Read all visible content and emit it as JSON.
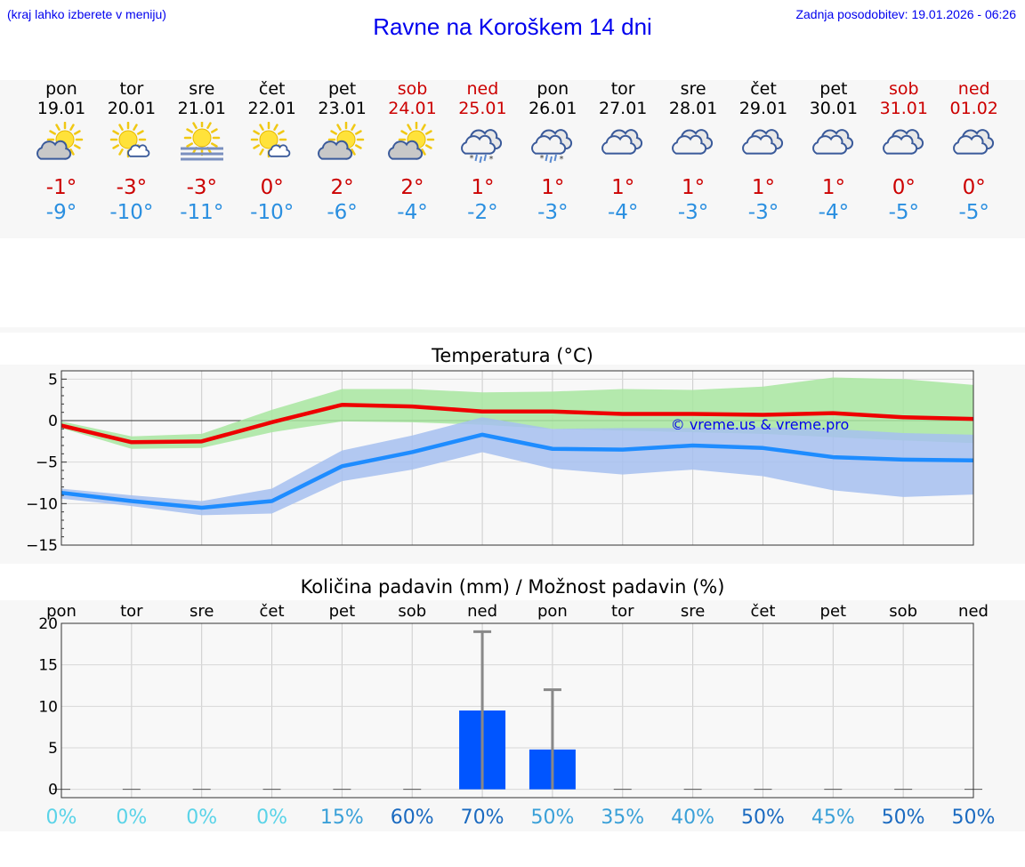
{
  "header": {
    "menu_hint": "(kraj lahko izberete v meniju)",
    "title": "Ravne na Koroškem 14 dni",
    "updated": "Zadnja posodobitev: 19.01.2026 - 06:26"
  },
  "days": [
    {
      "name": "pon",
      "date": "19.01",
      "weekend": false,
      "icon": "partly-cloudy-sun-icon",
      "tmax": "-1°",
      "tmin": "-9°"
    },
    {
      "name": "tor",
      "date": "20.01",
      "weekend": false,
      "icon": "sun-small-cloud-icon",
      "tmax": "-3°",
      "tmin": "-10°"
    },
    {
      "name": "sre",
      "date": "21.01",
      "weekend": false,
      "icon": "sun-fog-icon",
      "tmax": "-3°",
      "tmin": "-11°"
    },
    {
      "name": "čet",
      "date": "22.01",
      "weekend": false,
      "icon": "sun-small-cloud-icon",
      "tmax": "0°",
      "tmin": "-10°"
    },
    {
      "name": "pet",
      "date": "23.01",
      "weekend": false,
      "icon": "partly-cloudy-sun-icon",
      "tmax": "2°",
      "tmin": "-6°"
    },
    {
      "name": "sob",
      "date": "24.01",
      "weekend": true,
      "icon": "partly-cloudy-sun-icon",
      "tmax": "2°",
      "tmin": "-4°"
    },
    {
      "name": "ned",
      "date": "25.01",
      "weekend": true,
      "icon": "cloud-sleet-icon",
      "tmax": "1°",
      "tmin": "-2°"
    },
    {
      "name": "pon",
      "date": "26.01",
      "weekend": false,
      "icon": "cloud-sleet-icon",
      "tmax": "1°",
      "tmin": "-3°"
    },
    {
      "name": "tor",
      "date": "27.01",
      "weekend": false,
      "icon": "cloudy-icon",
      "tmax": "1°",
      "tmin": "-4°"
    },
    {
      "name": "sre",
      "date": "28.01",
      "weekend": false,
      "icon": "cloudy-icon",
      "tmax": "1°",
      "tmin": "-3°"
    },
    {
      "name": "čet",
      "date": "29.01",
      "weekend": false,
      "icon": "cloudy-icon",
      "tmax": "1°",
      "tmin": "-3°"
    },
    {
      "name": "pet",
      "date": "30.01",
      "weekend": false,
      "icon": "cloudy-icon",
      "tmax": "1°",
      "tmin": "-4°"
    },
    {
      "name": "sob",
      "date": "31.01",
      "weekend": true,
      "icon": "cloudy-icon",
      "tmax": "0°",
      "tmin": "-5°"
    },
    {
      "name": "ned",
      "date": "01.02",
      "weekend": true,
      "icon": "cloudy-icon",
      "tmax": "0°",
      "tmin": "-5°"
    }
  ],
  "colors": {
    "max_line": "#ee0000",
    "min_line": "#1e8cff",
    "max_band": "#a8e6a0",
    "min_band": "#a6c0f0",
    "bar": "#0055ff",
    "error_bar": "#888888",
    "weekend": "#cc0000",
    "tmin_text": "#2a8fe0"
  },
  "chart_data": [
    {
      "type": "line",
      "title": "Temperatura (°C)",
      "ylim": [
        -15,
        6
      ],
      "yticks": [
        5,
        0,
        -5,
        -10,
        -15
      ],
      "ytick_labels": [
        "5",
        "0",
        "−5",
        "−10",
        "−15"
      ],
      "watermark": "© vreme.us & vreme.pro",
      "x": [
        0,
        1,
        2,
        3,
        4,
        5,
        6,
        7,
        8,
        9,
        10,
        11,
        12,
        13
      ],
      "series": [
        {
          "name": "max",
          "values": [
            -0.6,
            -2.6,
            -2.5,
            -0.2,
            1.9,
            1.7,
            1.1,
            1.1,
            0.8,
            0.8,
            0.7,
            0.9,
            0.4,
            0.2
          ]
        },
        {
          "name": "min",
          "values": [
            -8.7,
            -9.7,
            -10.5,
            -9.7,
            -5.5,
            -3.8,
            -1.7,
            -3.4,
            -3.5,
            -3.0,
            -3.3,
            -4.4,
            -4.7,
            -4.8
          ]
        }
      ],
      "max_band": {
        "lower": [
          -0.9,
          -3.4,
          -3.3,
          -1.4,
          -0.1,
          -0.2,
          -0.5,
          -1.0,
          -1.2,
          -1.4,
          -1.6,
          -2.0,
          -2.4,
          -2.7
        ],
        "upper": [
          -0.1,
          -1.9,
          -1.6,
          1.3,
          3.8,
          3.8,
          3.4,
          3.5,
          3.8,
          3.7,
          4.1,
          5.2,
          5.0,
          4.3
        ]
      },
      "min_band": {
        "lower": [
          -9.4,
          -10.3,
          -11.4,
          -11.2,
          -7.3,
          -5.9,
          -3.8,
          -5.8,
          -6.5,
          -5.9,
          -6.7,
          -8.4,
          -9.2,
          -8.9
        ],
        "upper": [
          -8.2,
          -9.0,
          -9.7,
          -8.2,
          -3.6,
          -1.8,
          0.4,
          -1.0,
          -0.9,
          -0.9,
          -0.8,
          -1.0,
          -1.5,
          -1.7
        ]
      }
    },
    {
      "type": "bar",
      "title": "Količina padavin (mm) / Možnost padavin (%)",
      "ylim": [
        -1,
        20
      ],
      "yticks": [
        20,
        15,
        10,
        5,
        0
      ],
      "categories": [
        "pon",
        "tor",
        "sre",
        "čet",
        "pet",
        "sob",
        "ned",
        "pon",
        "tor",
        "sre",
        "čet",
        "pet",
        "sob",
        "ned"
      ],
      "values": [
        0,
        0,
        0,
        0,
        0,
        0,
        9.5,
        4.8,
        0,
        0,
        0,
        0,
        0,
        0
      ],
      "error_high": [
        0,
        0,
        0,
        0,
        0,
        0,
        19,
        12,
        0,
        0,
        0,
        0,
        0,
        0
      ],
      "chance_labels": [
        "0%",
        "0%",
        "0%",
        "0%",
        "15%",
        "60%",
        "70%",
        "50%",
        "35%",
        "40%",
        "50%",
        "45%",
        "50%",
        "50%"
      ],
      "chance_colors": [
        "#5ad3e8",
        "#5ad3e8",
        "#5ad3e8",
        "#5ad3e8",
        "#3aa0d8",
        "#1a6ac0",
        "#1a6ac0",
        "#3aa0d8",
        "#3aa0d8",
        "#3aa0d8",
        "#1a6ac0",
        "#3aa0d8",
        "#1a6ac0",
        "#1a6ac0"
      ]
    }
  ]
}
